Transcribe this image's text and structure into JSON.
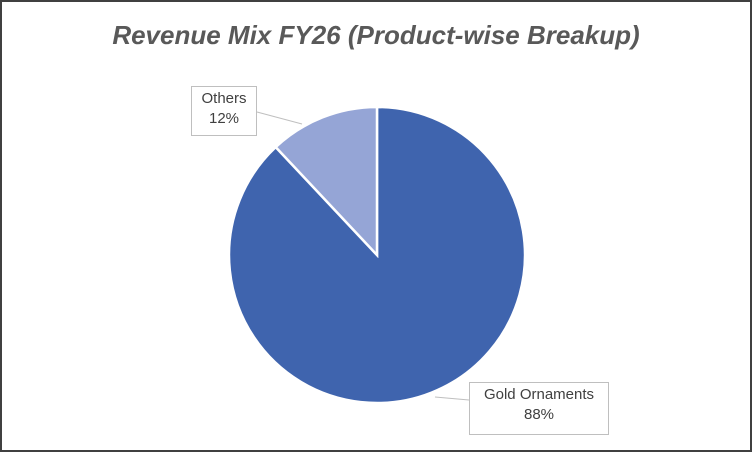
{
  "chart_data": {
    "type": "pie",
    "title": "Revenue Mix FY26 (Product-wise Breakup)",
    "slices": [
      {
        "label": "Gold Ornaments",
        "value": 88,
        "display": "88%",
        "color": "#3F64AE"
      },
      {
        "label": "Others",
        "value": 12,
        "display": "12%",
        "color": "#95A5D6"
      }
    ],
    "start": "12 o'clock, clockwise",
    "legend": "none",
    "data_labels": "callouts"
  }
}
